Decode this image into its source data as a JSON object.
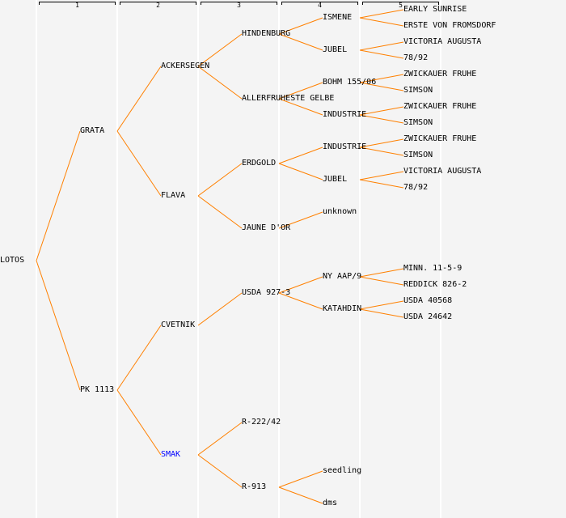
{
  "generation_headers": [
    "1",
    "2",
    "3",
    "4",
    "5"
  ],
  "colors": {
    "edge": "#ff8000",
    "link": "#0000ff",
    "background": "#f4f4f4"
  },
  "tree": {
    "name": "LOTOS",
    "children": [
      {
        "name": "GRATA",
        "children": [
          {
            "name": "ACKERSEGEN",
            "children": [
              {
                "name": "HINDENBURG",
                "children": [
                  {
                    "name": "ISMENE",
                    "children": [
                      {
                        "name": "EARLY SUNRISE"
                      },
                      {
                        "name": "ERSTE VON FROMSDORF"
                      }
                    ]
                  },
                  {
                    "name": "JUBEL",
                    "children": [
                      {
                        "name": "VICTORIA AUGUSTA"
                      },
                      {
                        "name": "78/92"
                      }
                    ]
                  }
                ]
              },
              {
                "name": "ALLERFRUHESTE GELBE",
                "children": [
                  {
                    "name": "BOHM 155/06",
                    "children": [
                      {
                        "name": "ZWICKAUER FRUHE"
                      },
                      {
                        "name": "SIMSON"
                      }
                    ]
                  },
                  {
                    "name": "INDUSTRIE",
                    "children": [
                      {
                        "name": "ZWICKAUER FRUHE"
                      },
                      {
                        "name": "SIMSON"
                      }
                    ]
                  }
                ]
              }
            ]
          },
          {
            "name": "FLAVA",
            "children": [
              {
                "name": "ERDGOLD",
                "children": [
                  {
                    "name": "INDUSTRIE",
                    "children": [
                      {
                        "name": "ZWICKAUER FRUHE"
                      },
                      {
                        "name": "SIMSON"
                      }
                    ]
                  },
                  {
                    "name": "JUBEL",
                    "children": [
                      {
                        "name": "VICTORIA AUGUSTA"
                      },
                      {
                        "name": "78/92"
                      }
                    ]
                  }
                ]
              },
              {
                "name": "JAUNE D'OR",
                "children": [
                  {
                    "name": "unknown",
                    "single": true
                  }
                ]
              }
            ]
          }
        ]
      },
      {
        "name": "PK 1113",
        "children": [
          {
            "name": "CVETNIK",
            "children": [
              {
                "name": "USDA 927-3",
                "single": true,
                "children": [
                  {
                    "name": "NY AAP/9",
                    "children": [
                      {
                        "name": "MINN. 11-5-9"
                      },
                      {
                        "name": "REDDICK 826-2"
                      }
                    ]
                  },
                  {
                    "name": "KATAHDIN",
                    "children": [
                      {
                        "name": "USDA 40568"
                      },
                      {
                        "name": "USDA 24642"
                      }
                    ]
                  }
                ]
              }
            ]
          },
          {
            "name": "SMAK",
            "link": true,
            "children": [
              {
                "name": "R-222/42"
              },
              {
                "name": "R-913",
                "children": [
                  {
                    "name": "seedling"
                  },
                  {
                    "name": "dms"
                  }
                ]
              }
            ]
          }
        ]
      }
    ]
  }
}
